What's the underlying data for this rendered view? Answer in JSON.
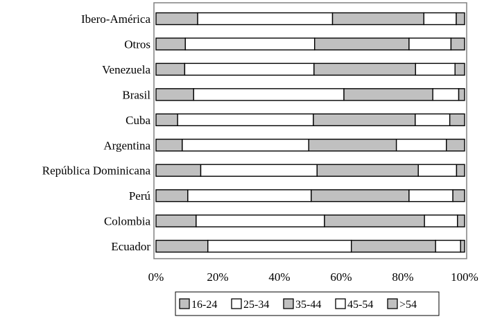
{
  "chart_data": {
    "type": "bar",
    "orientation": "horizontal",
    "stacked": "percent",
    "categories": [
      "Ibero-América",
      "Otros",
      "Venezuela",
      "Brasil",
      "Cuba",
      "Argentina",
      "República Dominicana",
      "Perú",
      "Colombia",
      "Ecuador"
    ],
    "series": [
      {
        "name": "16-24",
        "color": "#c0c0c0",
        "values": [
          13.5,
          9.5,
          9.3,
          12.2,
          7.0,
          8.5,
          14.5,
          10.3,
          13.0,
          16.8
        ]
      },
      {
        "name": "25-34",
        "color": "#ffffff",
        "values": [
          43.7,
          41.9,
          41.9,
          48.7,
          44.0,
          41.0,
          37.7,
          40.0,
          41.6,
          46.5
        ]
      },
      {
        "name": "35-44",
        "color": "#c0c0c0",
        "values": [
          29.6,
          30.6,
          32.9,
          28.8,
          33.0,
          28.4,
          32.8,
          31.7,
          32.4,
          27.3
        ]
      },
      {
        "name": "45-54",
        "color": "#ffffff",
        "values": [
          10.5,
          13.6,
          12.8,
          8.4,
          11.2,
          16.2,
          12.4,
          14.2,
          10.7,
          8.1
        ]
      },
      {
        "name": ">54",
        "color": "#c0c0c0",
        "values": [
          2.7,
          4.4,
          3.1,
          1.9,
          4.8,
          5.9,
          2.6,
          3.8,
          2.3,
          1.3
        ]
      }
    ],
    "xlim": [
      0,
      100
    ],
    "xticks": [
      "0%",
      "20%",
      "40%",
      "60%",
      "80%",
      "100%"
    ],
    "grid": false,
    "legend_position": "bottom"
  }
}
